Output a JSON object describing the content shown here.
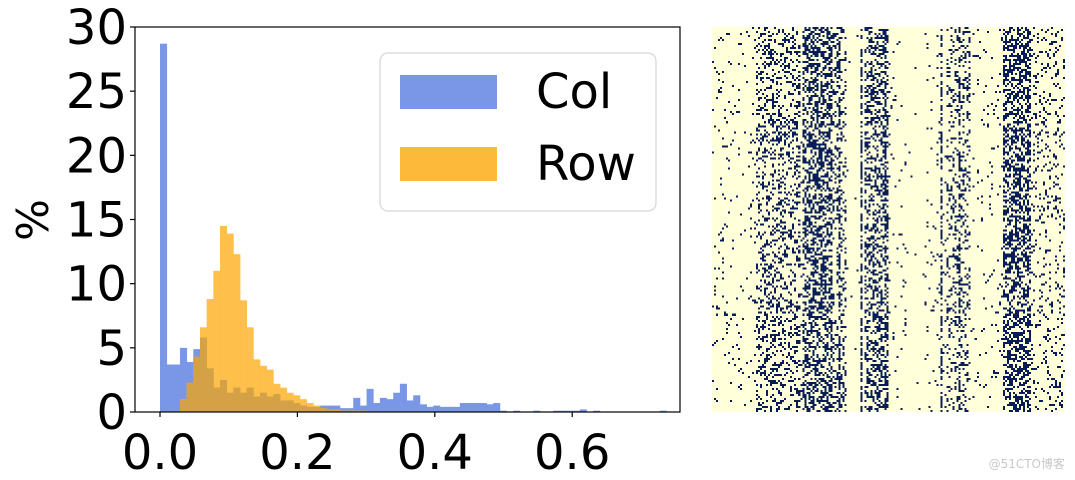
{
  "chart_data": [
    {
      "type": "bar",
      "subtype": "histogram",
      "ylabel": "%",
      "xlabel": "",
      "ylim": [
        0,
        30
      ],
      "xlim": [
        -0.035,
        0.76
      ],
      "yticks": [
        0,
        5,
        10,
        15,
        20,
        25,
        30
      ],
      "xticks": [
        "0.0",
        "0.2",
        "0.4",
        "0.6"
      ],
      "xtick_values": [
        0.0,
        0.2,
        0.4,
        0.6
      ],
      "bin_width": 0.0097,
      "legend": {
        "position": "upper right",
        "entries": [
          "Col",
          "Row"
        ]
      },
      "series": [
        {
          "name": "Col",
          "color": "#7a96e6",
          "bin_start": 0.0,
          "values": [
            28.7,
            3.7,
            3.7,
            5.0,
            3.9,
            4.9,
            5.8,
            3.4,
            1.9,
            2.5,
            1.5,
            1.9,
            1.5,
            1.9,
            1.2,
            1.5,
            1.2,
            1.4,
            0.9,
            0.9,
            0.7,
            0.5,
            0.4,
            0.4,
            0.5,
            0.5,
            0.5,
            0.3,
            0.3,
            1.1,
            0.5,
            1.8,
            0.7,
            1.1,
            1.0,
            1.5,
            2.2,
            0.9,
            1.3,
            0.6,
            0.4,
            0.5,
            0.4,
            0.4,
            0.4,
            0.7,
            0.7,
            0.7,
            0.7,
            0.6,
            0.7,
            0.1,
            0.0,
            0.1,
            0.0,
            0.0,
            0.1,
            0.0,
            0.0,
            0.1,
            0.1,
            0.1,
            0.1,
            0.2,
            0.0,
            0.1,
            0.0,
            0.0,
            0.0,
            0.0,
            0.0,
            0.0,
            0.0,
            0.0,
            0.0,
            0.1
          ]
        },
        {
          "name": "Row",
          "color": "#fdb93a",
          "bin_start": 0.0,
          "values": [
            0.0,
            0.0,
            0.0,
            1.0,
            2.3,
            4.3,
            6.6,
            8.8,
            11.0,
            14.5,
            13.9,
            12.3,
            8.7,
            6.6,
            4.1,
            3.6,
            3.3,
            2.2,
            1.9,
            1.5,
            1.3,
            1.0,
            0.7,
            0.5,
            0.3,
            0.2,
            0.2,
            0.1,
            0.1,
            0.1,
            0.1
          ]
        }
      ],
      "overlap_color": "#d4a146"
    },
    {
      "type": "heatmap",
      "description": "binary sparse matrix, dark dots on cream background, vertical column bands",
      "colors": {
        "background": "#ffffd9",
        "foreground": "#081d58"
      },
      "dense_column_bands_fraction": [
        [
          0.12,
          0.25
        ],
        [
          0.25,
          0.34
        ],
        [
          0.43,
          0.5
        ],
        [
          0.67,
          0.72
        ],
        [
          0.82,
          0.9
        ]
      ],
      "axes": "off"
    }
  ],
  "watermark": "@51CTO博客"
}
